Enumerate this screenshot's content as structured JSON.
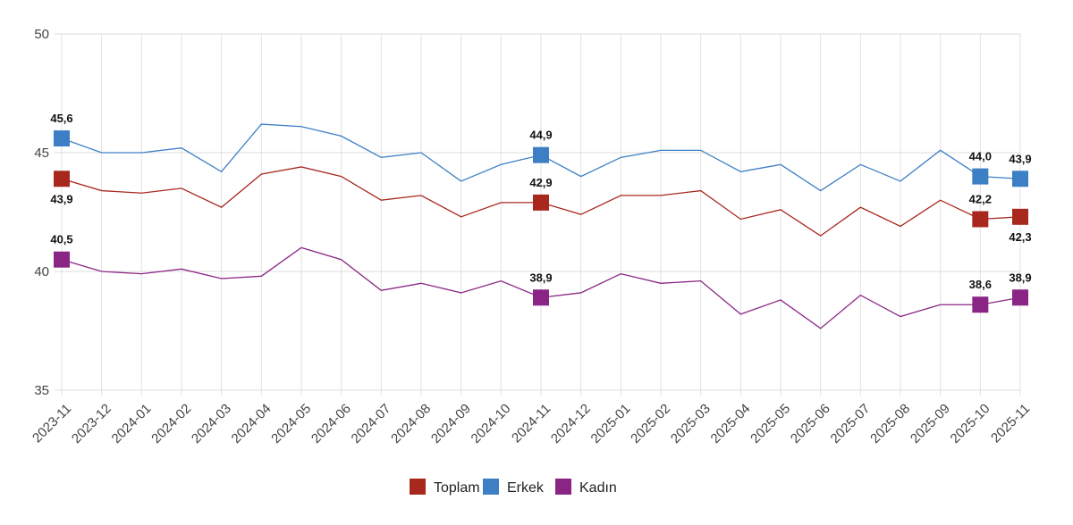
{
  "chart_data": {
    "type": "line",
    "title": "",
    "xlabel": "",
    "ylabel": "",
    "ylim": [
      35,
      50
    ],
    "yticks": [
      "35",
      "40",
      "45",
      "50"
    ],
    "grid": true,
    "legend_placement": "bottom",
    "x": [
      "2023-11",
      "2023-12",
      "2024-01",
      "2024-02",
      "2024-03",
      "2024-04",
      "2024-05",
      "2024-06",
      "2024-07",
      "2024-08",
      "2024-09",
      "2024-10",
      "2024-11",
      "2024-12",
      "2025-01",
      "2025-02",
      "2025-03",
      "2025-04",
      "2025-05",
      "2025-06",
      "2025-07",
      "2025-08",
      "2025-09",
      "2025-10",
      "2025-11"
    ],
    "series": [
      {
        "name": "Toplam",
        "color": "#a8281e",
        "values": [
          43.9,
          43.4,
          43.3,
          43.5,
          42.7,
          44.1,
          44.4,
          44.0,
          43.0,
          43.2,
          42.3,
          42.9,
          42.9,
          42.4,
          43.2,
          43.2,
          43.4,
          42.2,
          42.6,
          41.5,
          42.7,
          41.9,
          43.0,
          42.2,
          42.3
        ],
        "labels": {
          "0": "43,9",
          "12": "42,9",
          "23": "42,2",
          "24": "42,3"
        }
      },
      {
        "name": "Erkek",
        "color": "#3d7fc4",
        "values": [
          45.6,
          45.0,
          45.0,
          45.2,
          44.2,
          46.2,
          46.1,
          45.7,
          44.8,
          45.0,
          43.8,
          44.5,
          44.9,
          44.0,
          44.8,
          45.1,
          45.1,
          44.2,
          44.5,
          43.4,
          44.5,
          43.8,
          45.1,
          44.0,
          43.9
        ],
        "labels": {
          "0": "45,6",
          "12": "44,9",
          "23": "44,0",
          "24": "43,9"
        }
      },
      {
        "name": "Kadın",
        "color": "#8b2585",
        "values": [
          40.5,
          40.0,
          39.9,
          40.1,
          39.7,
          39.8,
          41.0,
          40.5,
          39.2,
          39.5,
          39.1,
          39.6,
          38.9,
          39.1,
          39.9,
          39.5,
          39.6,
          38.2,
          38.8,
          37.6,
          39.0,
          38.1,
          38.6,
          38.6,
          38.9
        ],
        "labels": {
          "0": "40,5",
          "12": "38,9",
          "23": "38,6",
          "24": "38,9"
        }
      }
    ]
  }
}
